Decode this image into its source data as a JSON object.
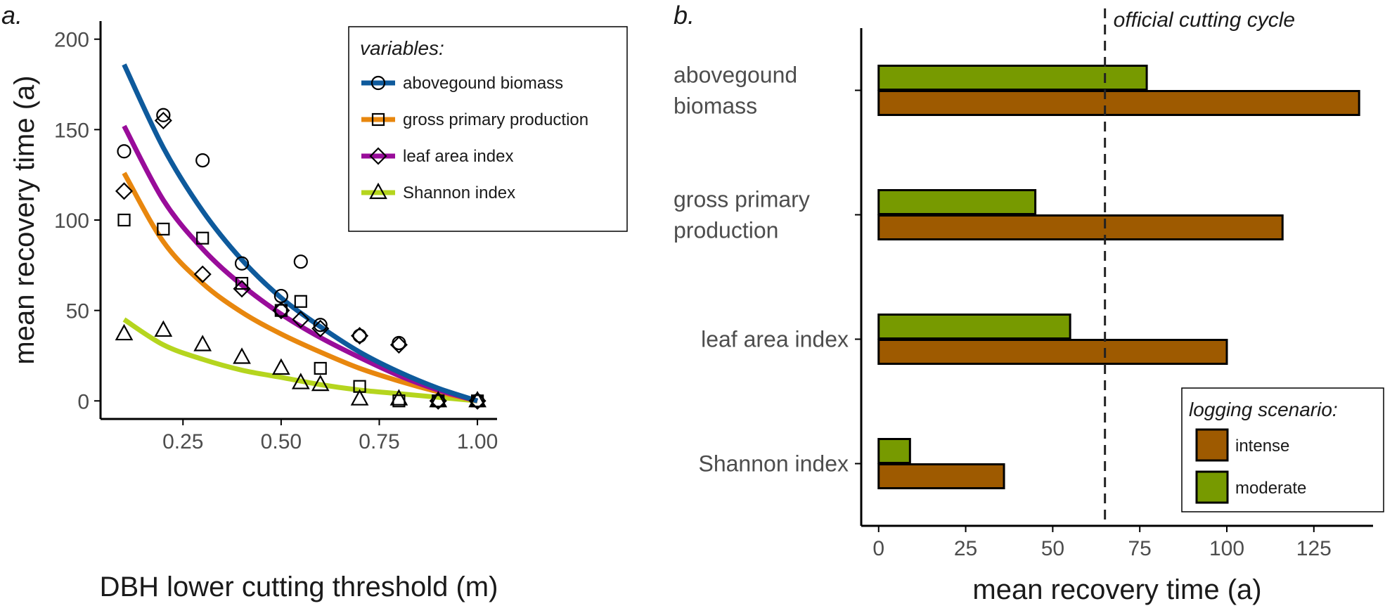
{
  "chart_data": [
    {
      "panel_label": "a.",
      "type": "scatter",
      "xlabel": "DBH lower cutting threshold (m)",
      "ylabel": "mean recovery time (a)",
      "xlim": [
        0.04,
        1.05
      ],
      "ylim": [
        -10,
        210
      ],
      "x_ticks": [
        0.25,
        0.5,
        0.75,
        1.0
      ],
      "x_tick_labels": [
        "0.25",
        "0.50",
        "0.75",
        "1.00"
      ],
      "y_ticks": [
        0,
        50,
        100,
        150,
        200
      ],
      "y_tick_labels": [
        "0",
        "50",
        "100",
        "150",
        "200"
      ],
      "grid": false,
      "legend": {
        "title": "variables:",
        "position": "top-right",
        "entries": [
          "abovegound biomass",
          "gross primary production",
          "leaf area index",
          "Shannon index"
        ]
      },
      "series": [
        {
          "name": "abovegound biomass",
          "color": "#0e5a9c",
          "marker": "circle",
          "points": [
            [
              0.1,
              138
            ],
            [
              0.2,
              158
            ],
            [
              0.3,
              133
            ],
            [
              0.4,
              76
            ],
            [
              0.5,
              58
            ],
            [
              0.5,
              50
            ],
            [
              0.55,
              77
            ],
            [
              0.6,
              42
            ],
            [
              0.7,
              36
            ],
            [
              0.8,
              32
            ],
            [
              0.9,
              0
            ],
            [
              1.0,
              0
            ]
          ],
          "fit": [
            [
              0.1,
              186
            ],
            [
              0.2,
              140
            ],
            [
              0.3,
              105
            ],
            [
              0.4,
              78
            ],
            [
              0.5,
              57
            ],
            [
              0.6,
              41
            ],
            [
              0.7,
              27
            ],
            [
              0.8,
              16
            ],
            [
              0.9,
              7
            ],
            [
              1.0,
              0
            ]
          ]
        },
        {
          "name": "gross primary production",
          "color": "#e8870e",
          "marker": "square",
          "points": [
            [
              0.1,
              100
            ],
            [
              0.2,
              95
            ],
            [
              0.3,
              90
            ],
            [
              0.4,
              65
            ],
            [
              0.5,
              50
            ],
            [
              0.55,
              55
            ],
            [
              0.6,
              18
            ],
            [
              0.7,
              8
            ],
            [
              0.8,
              0
            ],
            [
              0.9,
              0
            ],
            [
              1.0,
              0
            ]
          ],
          "fit": [
            [
              0.1,
              126
            ],
            [
              0.2,
              88
            ],
            [
              0.3,
              65
            ],
            [
              0.4,
              49
            ],
            [
              0.5,
              37
            ],
            [
              0.6,
              27
            ],
            [
              0.7,
              18
            ],
            [
              0.8,
              11
            ],
            [
              0.9,
              5
            ],
            [
              1.0,
              0
            ]
          ]
        },
        {
          "name": "leaf area index",
          "color": "#990c9a",
          "marker": "diamond",
          "points": [
            [
              0.1,
              116
            ],
            [
              0.2,
              155
            ],
            [
              0.3,
              70
            ],
            [
              0.4,
              62
            ],
            [
              0.5,
              50
            ],
            [
              0.55,
              45
            ],
            [
              0.6,
              40
            ],
            [
              0.7,
              36
            ],
            [
              0.8,
              31
            ],
            [
              0.9,
              0
            ],
            [
              1.0,
              0
            ]
          ],
          "fit": [
            [
              0.1,
              152
            ],
            [
              0.2,
              111
            ],
            [
              0.3,
              84
            ],
            [
              0.4,
              64
            ],
            [
              0.5,
              48
            ],
            [
              0.6,
              35
            ],
            [
              0.7,
              24
            ],
            [
              0.8,
              14
            ],
            [
              0.9,
              6
            ],
            [
              1.0,
              0
            ]
          ]
        },
        {
          "name": "Shannon index",
          "color": "#b5d51e",
          "marker": "triangle",
          "points": [
            [
              0.1,
              37
            ],
            [
              0.2,
              39
            ],
            [
              0.3,
              31
            ],
            [
              0.4,
              24
            ],
            [
              0.5,
              18
            ],
            [
              0.55,
              10
            ],
            [
              0.6,
              9
            ],
            [
              0.7,
              1
            ],
            [
              0.8,
              1
            ],
            [
              0.9,
              0
            ],
            [
              1.0,
              0
            ]
          ],
          "fit": [
            [
              0.1,
              45
            ],
            [
              0.2,
              31
            ],
            [
              0.3,
              23
            ],
            [
              0.4,
              17
            ],
            [
              0.5,
              13
            ],
            [
              0.6,
              9
            ],
            [
              0.7,
              6
            ],
            [
              0.8,
              4
            ],
            [
              0.9,
              2
            ],
            [
              1.0,
              0
            ]
          ]
        }
      ]
    },
    {
      "panel_label": "b.",
      "type": "bar",
      "orientation": "horizontal",
      "xlabel": "mean recovery time (a)",
      "xlim": [
        -5,
        142
      ],
      "x_ticks": [
        0,
        25,
        50,
        75,
        100,
        125
      ],
      "x_tick_labels": [
        "0",
        "25",
        "50",
        "75",
        "100",
        "125"
      ],
      "categories": [
        "abovegound biomass",
        "gross primary production",
        "leaf area index",
        "Shannon index"
      ],
      "category_label_lines": [
        [
          "abovegound",
          "biomass"
        ],
        [
          "gross primary",
          "production"
        ],
        [
          "leaf area index"
        ],
        [
          "Shannon index"
        ]
      ],
      "series": [
        {
          "name": "moderate",
          "color": "#779a00",
          "values": [
            77,
            45,
            55,
            9
          ]
        },
        {
          "name": "intense",
          "color": "#9e5a00",
          "values": [
            138,
            116,
            100,
            36
          ]
        }
      ],
      "reference_line": {
        "value": 65,
        "label": "official cutting cycle",
        "style": "dashed"
      },
      "grid": false,
      "legend": {
        "title": "logging scenario:",
        "position": "bottom-right",
        "entries": [
          {
            "name": "intense",
            "color": "#9e5a00"
          },
          {
            "name": "moderate",
            "color": "#779a00"
          }
        ]
      }
    }
  ]
}
